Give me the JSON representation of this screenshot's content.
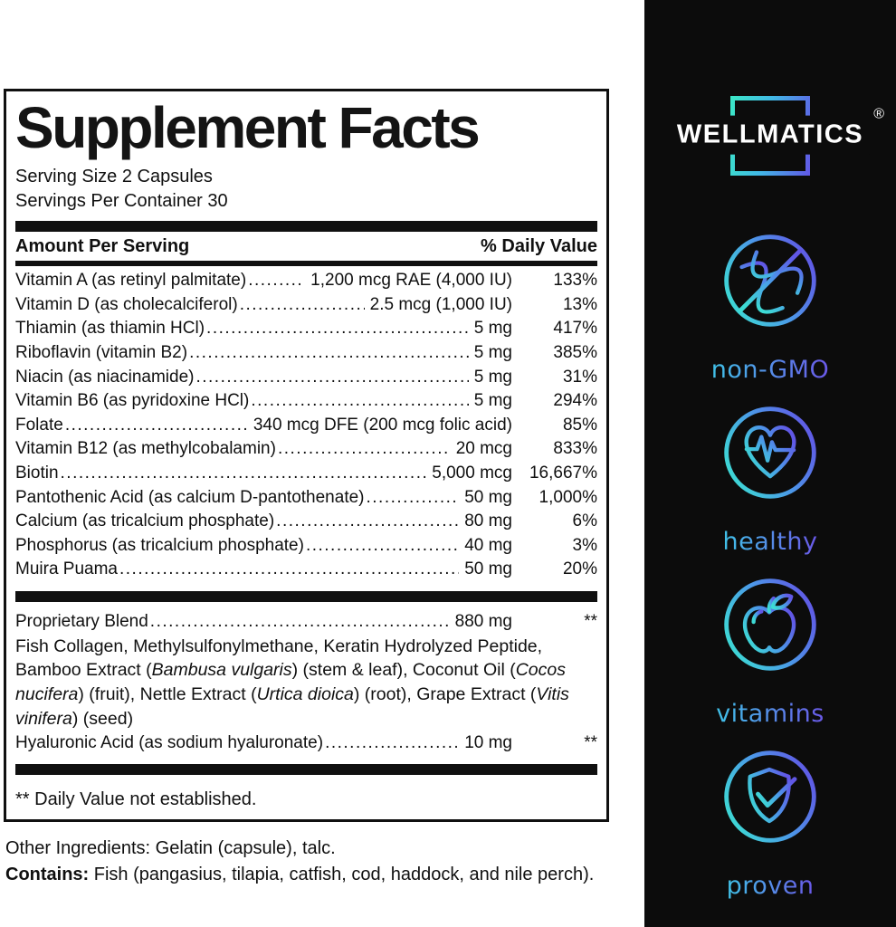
{
  "panel": {
    "title": "Supplement Facts",
    "serving_size": "Serving Size 2 Capsules",
    "servings_per_container": "Servings Per Container 30",
    "columns": {
      "amount": "Amount Per Serving",
      "daily_value": "% Daily Value"
    },
    "rows": [
      {
        "name": "Vitamin A (as retinyl palmitate)",
        "amount": "1,200 mcg RAE (4,000 IU)",
        "dv": "133%"
      },
      {
        "name": "Vitamin D (as cholecalciferol)",
        "amount": "2.5 mcg (1,000 IU)",
        "dv": "13%"
      },
      {
        "name": "Thiamin (as thiamin HCl)",
        "amount": "5 mg",
        "dv": "417%"
      },
      {
        "name": "Riboflavin (vitamin B2)",
        "amount": "5 mg",
        "dv": "385%"
      },
      {
        "name": "Niacin (as niacinamide)",
        "amount": "5 mg",
        "dv": "31%"
      },
      {
        "name": "Vitamin B6 (as pyridoxine HCl)",
        "amount": "5 mg",
        "dv": "294%"
      },
      {
        "name": "Folate",
        "amount": "340 mcg DFE (200 mcg folic acid)",
        "dv": "85%"
      },
      {
        "name": "Vitamin B12 (as methylcobalamin)",
        "amount": "20 mcg",
        "dv": "833%"
      },
      {
        "name": "Biotin",
        "amount": "5,000 mcg",
        "dv": "16,667%"
      },
      {
        "name": "Pantothenic Acid (as calcium D-pantothenate)",
        "amount": "50 mg",
        "dv": "1,000%"
      },
      {
        "name": "Calcium (as tricalcium phosphate)",
        "amount": "80 mg",
        "dv": "6%"
      },
      {
        "name": "Phosphorus (as tricalcium phosphate)",
        "amount": "40 mg",
        "dv": "3%"
      },
      {
        "name": "Muira Puama",
        "amount": "50 mg",
        "dv": "20%"
      }
    ],
    "blend": {
      "name": "Proprietary Blend",
      "amount": "880 mg",
      "dv": "**",
      "description_segments": [
        {
          "text": "Fish Collagen, Methylsulfonylmethane, Keratin Hydrolyzed Peptide, Bamboo Extract (",
          "italic": false
        },
        {
          "text": "Bambusa vulgaris",
          "italic": true
        },
        {
          "text": ") (stem & leaf), Coconut Oil (",
          "italic": false
        },
        {
          "text": "Cocos nucifera",
          "italic": true
        },
        {
          "text": ") (fruit), Nettle Extract (",
          "italic": false
        },
        {
          "text": "Urtica dioica",
          "italic": true
        },
        {
          "text": ") (root), Grape Extract (",
          "italic": false
        },
        {
          "text": "Vitis vinifera",
          "italic": true
        },
        {
          "text": ") (seed)",
          "italic": false
        }
      ],
      "hyaluronic_row": {
        "name": "Hyaluronic Acid (as sodium hyaluronate)",
        "amount": "10 mg",
        "dv": "**"
      }
    },
    "footnote": "** Daily Value not established."
  },
  "footer": {
    "other_ingredients": "Other Ingredients: Gelatin (capsule), talc.",
    "contains_label": "Contains:",
    "contains_text": " Fish (pangasius, tilapia, catfish, cod, haddock, and nile perch)."
  },
  "sidebar": {
    "brand": {
      "name": "WELLMATICS",
      "registered_mark": "®"
    },
    "badges": [
      {
        "icon": "no-gmo-dna-icon",
        "label": "non-GMO"
      },
      {
        "icon": "heart-pulse-icon",
        "label": "healthy"
      },
      {
        "icon": "apple-icon",
        "label": "vitamins"
      },
      {
        "icon": "shield-check-icon",
        "label": "proven"
      }
    ],
    "colors": {
      "background": "#0c0c0c",
      "gradient_start": "#3be8c6",
      "gradient_mid": "#41b9e6",
      "gradient_end": "#6157e6"
    }
  }
}
